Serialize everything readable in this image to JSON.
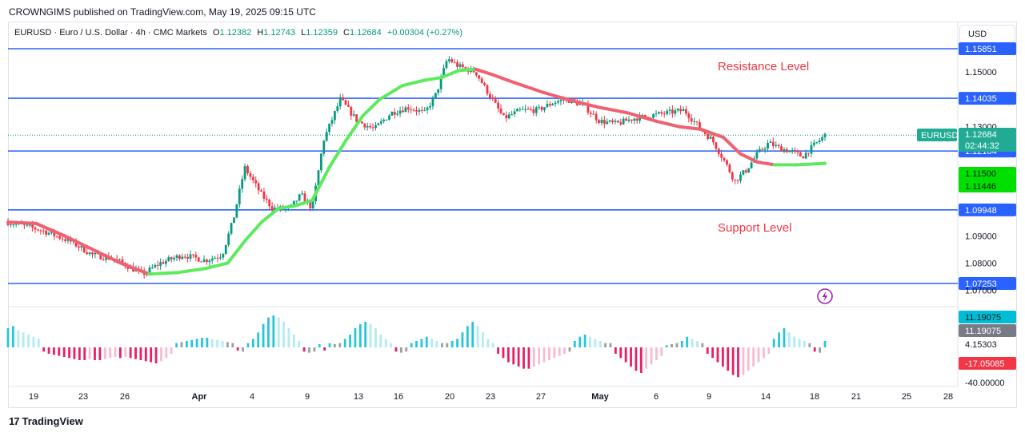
{
  "header": {
    "published": "CROWNGIMS published on TradingView.com, May 19, 2025 09:15 UTC"
  },
  "legend": {
    "symbol": "EURUSD · Euro / U.S. Dollar · 4h · CMC Markets",
    "open_label": "O",
    "open": "1.12382",
    "high_label": "H",
    "high": "1.12743",
    "low_label": "L",
    "low": "1.12359",
    "close_label": "C",
    "close": "1.12684",
    "change": "+0.00304 (+0.27%)"
  },
  "currency_button": "USD",
  "footer": {
    "brand": "TradingView",
    "logo_glyph": "17"
  },
  "colors": {
    "level_line": "#2962ff",
    "up": "#089981",
    "down": "#f23645",
    "ma_up": "#5eea5e",
    "ma_down": "#f06070",
    "annotation": "#f23645"
  },
  "chart_data": [
    {
      "type": "candlestick",
      "symbol": "EURUSD",
      "timeframe": "4h",
      "price_axis": {
        "range": [
          1.0665,
          1.1585
        ],
        "ticks": [
          "1.15000",
          "1.13000",
          "1.09000",
          "1.08000",
          "1.07000"
        ]
      },
      "horizontal_levels": [
        {
          "value": 1.15851,
          "label": "1.15851"
        },
        {
          "value": 1.14035,
          "label": "1.14035"
        },
        {
          "value": 1.12104,
          "label": "1.12104"
        },
        {
          "value": 1.09948,
          "label": "1.09948"
        },
        {
          "value": 1.07253,
          "label": "1.07253"
        }
      ],
      "price_tags": [
        {
          "text": "EURUSD",
          "value": 1.12684,
          "color": "#22ab94"
        },
        {
          "text": "1.12684",
          "value": 1.12684,
          "color": "#22ab94"
        },
        {
          "text": "02:44:32",
          "value": 1.12684,
          "color": "#22ab94"
        },
        {
          "text": "1.11500",
          "value": 1.115,
          "color": "#00e000"
        },
        {
          "text": "1.11446",
          "value": 1.11446,
          "color": "#00e000"
        }
      ],
      "annotations": [
        {
          "text": "Resistance Level",
          "near_level": 1.15
        },
        {
          "text": "Support Level",
          "near_level": 1.09
        }
      ],
      "x_axis_labels": [
        "19",
        "23",
        "26",
        "Apr",
        "4",
        "9",
        "13",
        "16",
        "20",
        "23",
        "27",
        "May",
        "6",
        "9",
        "14",
        "18",
        "21",
        "25",
        "28"
      ],
      "x_axis_bold": [
        "Apr",
        "May"
      ],
      "price_path": [
        [
          0,
          1.095
        ],
        [
          12,
          1.092
        ],
        [
          22,
          1.088
        ],
        [
          30,
          1.083
        ],
        [
          38,
          1.0815
        ],
        [
          44,
          1.078
        ],
        [
          48,
          1.076
        ],
        [
          54,
          1.08
        ],
        [
          62,
          1.083
        ],
        [
          70,
          1.081
        ],
        [
          76,
          1.083
        ],
        [
          80,
          1.096
        ],
        [
          84,
          1.115
        ],
        [
          90,
          1.105
        ],
        [
          94,
          1.1
        ],
        [
          100,
          1.1
        ],
        [
          104,
          1.105
        ],
        [
          108,
          1.1
        ],
        [
          112,
          1.125
        ],
        [
          118,
          1.14
        ],
        [
          124,
          1.132
        ],
        [
          130,
          1.129
        ],
        [
          136,
          1.135
        ],
        [
          142,
          1.137
        ],
        [
          148,
          1.135
        ],
        [
          152,
          1.142
        ],
        [
          156,
          1.155
        ],
        [
          160,
          1.152
        ],
        [
          166,
          1.15
        ],
        [
          170,
          1.143
        ],
        [
          176,
          1.133
        ],
        [
          182,
          1.136
        ],
        [
          188,
          1.136
        ],
        [
          194,
          1.139
        ],
        [
          198,
          1.14
        ],
        [
          204,
          1.138
        ],
        [
          210,
          1.132
        ],
        [
          216,
          1.131
        ],
        [
          222,
          1.133
        ],
        [
          228,
          1.134
        ],
        [
          234,
          1.135
        ],
        [
          240,
          1.136
        ],
        [
          246,
          1.129
        ],
        [
          250,
          1.125
        ],
        [
          254,
          1.118
        ],
        [
          258,
          1.11
        ],
        [
          262,
          1.114
        ],
        [
          266,
          1.12
        ],
        [
          270,
          1.124
        ],
        [
          274,
          1.122
        ],
        [
          278,
          1.121
        ],
        [
          282,
          1.119
        ],
        [
          286,
          1.123
        ],
        [
          290,
          1.1268
        ]
      ],
      "moving_average": [
        [
          0,
          1.095
        ],
        [
          10,
          1.0945
        ],
        [
          20,
          1.09
        ],
        [
          30,
          1.085
        ],
        [
          40,
          1.08
        ],
        [
          50,
          1.076
        ],
        [
          60,
          1.0765
        ],
        [
          70,
          1.078
        ],
        [
          78,
          1.08
        ],
        [
          84,
          1.088
        ],
        [
          90,
          1.095
        ],
        [
          96,
          1.1
        ],
        [
          102,
          1.101
        ],
        [
          108,
          1.103
        ],
        [
          114,
          1.115
        ],
        [
          120,
          1.125
        ],
        [
          126,
          1.134
        ],
        [
          132,
          1.14
        ],
        [
          140,
          1.145
        ],
        [
          148,
          1.147
        ],
        [
          154,
          1.148
        ],
        [
          160,
          1.1505
        ],
        [
          166,
          1.151
        ],
        [
          172,
          1.149
        ],
        [
          180,
          1.146
        ],
        [
          190,
          1.1425
        ],
        [
          200,
          1.1395
        ],
        [
          210,
          1.137
        ],
        [
          220,
          1.135
        ],
        [
          230,
          1.132
        ],
        [
          238,
          1.13
        ],
        [
          246,
          1.129
        ],
        [
          254,
          1.126
        ],
        [
          260,
          1.12
        ],
        [
          266,
          1.117
        ],
        [
          272,
          1.116
        ],
        [
          280,
          1.116
        ],
        [
          290,
          1.1165
        ]
      ]
    },
    {
      "type": "bar",
      "name": "momentum histogram",
      "axis_range": [
        -40,
        28
      ],
      "ticks": [
        "4.15303",
        "-40.00000"
      ],
      "value_tags": [
        {
          "text": "11.19075",
          "color": "#00bcd4"
        },
        {
          "text": "11.19075",
          "color": "#787b86"
        },
        {
          "text": "-17.05085",
          "color": "#f23645"
        }
      ],
      "values": [
        18,
        20,
        16,
        14,
        12,
        10,
        8,
        -4,
        -6,
        -7,
        -8,
        -9,
        -10,
        -11,
        -12,
        -12,
        -11,
        -12,
        -12,
        -11,
        -10,
        -9,
        -10,
        -9,
        -10,
        -11,
        -12,
        -13,
        -14,
        -15,
        -13,
        -10,
        -6,
        4,
        5,
        6,
        7,
        8,
        9,
        9,
        8,
        7,
        6,
        5,
        4,
        -3,
        -4,
        4,
        8,
        14,
        22,
        28,
        30,
        28,
        24,
        18,
        12,
        6,
        -4,
        -5,
        -4,
        3,
        -3,
        4,
        3,
        4,
        8,
        12,
        18,
        22,
        24,
        22,
        18,
        12,
        8,
        4,
        -4,
        -5,
        -4,
        4,
        6,
        8,
        10,
        8,
        6,
        4,
        4,
        6,
        8,
        14,
        20,
        24,
        20,
        14,
        8,
        4,
        -6,
        -10,
        -14,
        -16,
        -18,
        -20,
        -20,
        -18,
        -16,
        -14,
        -12,
        -10,
        -8,
        -6,
        -4,
        6,
        10,
        12,
        10,
        8,
        6,
        4,
        4,
        -6,
        -10,
        -14,
        -18,
        -22,
        -24,
        -20,
        -16,
        -12,
        -8,
        2,
        3,
        4,
        6,
        10,
        8,
        6,
        4,
        -6,
        -10,
        -14,
        -18,
        -22,
        -26,
        -28,
        -26,
        -22,
        -18,
        -14,
        -10,
        -6,
        8,
        14,
        18,
        14,
        10,
        8,
        6,
        4,
        -4,
        -5,
        6
      ]
    }
  ]
}
